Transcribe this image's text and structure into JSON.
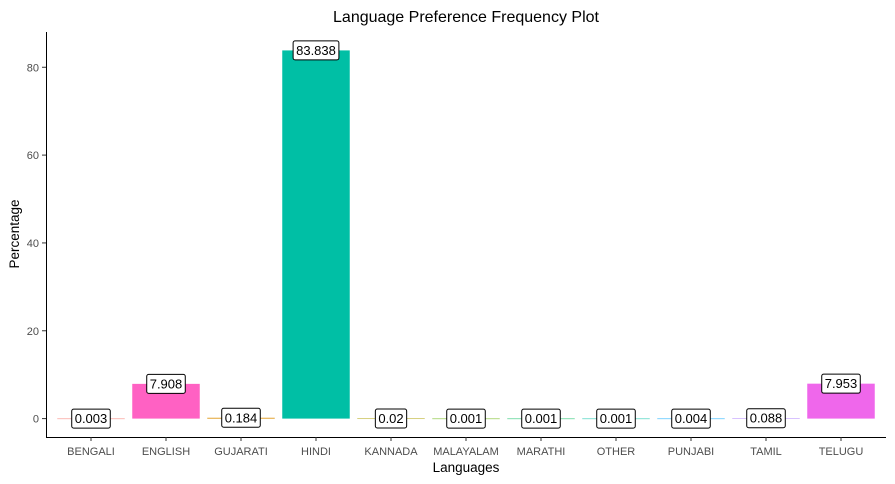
{
  "chart_data": {
    "type": "bar",
    "title": "Language Preference Frequency Plot",
    "xlabel": "Languages",
    "ylabel": "Percentage",
    "categories": [
      "BENGALI",
      "ENGLISH",
      "GUJARATI",
      "HINDI",
      "KANNADA",
      "MALAYALAM",
      "MARATHI",
      "OTHER",
      "PUNJABI",
      "TAMIL",
      "TELUGU"
    ],
    "values": [
      0.003,
      7.908,
      0.184,
      83.838,
      0.02,
      0.001,
      0.001,
      0.001,
      0.004,
      0.088,
      7.953
    ],
    "data_labels": [
      "0.003",
      "7.908",
      "0.184",
      "83.838",
      "0.02",
      "0.001",
      "0.001",
      "0.001",
      "0.004",
      "0.088",
      "7.953"
    ],
    "colors": [
      "#F8766D",
      "#FF61C3",
      "#DB8E00",
      "#00BFA5",
      "#AEA200",
      "#64B200",
      "#00BD5C",
      "#00C1A7",
      "#00A6FF",
      "#B385FF",
      "#EF67EB"
    ],
    "yticks": [
      0,
      20,
      40,
      60,
      80
    ],
    "ylim": [
      -4.19,
      88.03
    ],
    "grid": false,
    "legend": "none"
  }
}
